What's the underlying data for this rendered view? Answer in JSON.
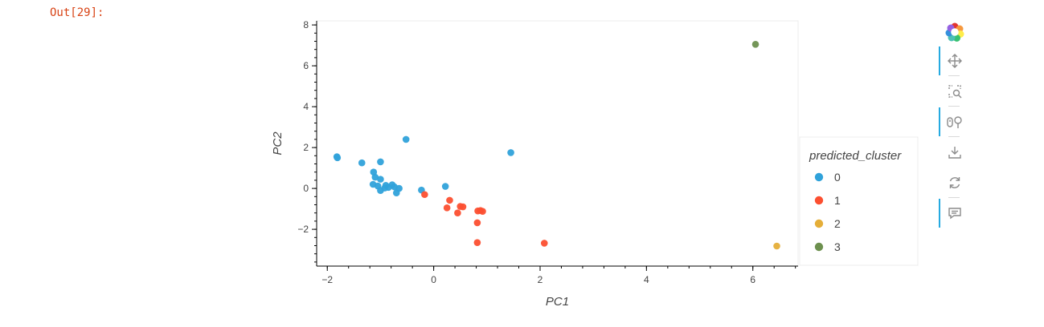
{
  "cell": {
    "out_label": "Out[29]:"
  },
  "chart_data": {
    "type": "scatter",
    "title": "",
    "xlabel": "PC1",
    "ylabel": "PC2",
    "xlim": [
      -2.2,
      6.85
    ],
    "ylim": [
      -3.8,
      8.2
    ],
    "x_ticks": [
      -2,
      0,
      2,
      4,
      6
    ],
    "y_ticks": [
      -2,
      0,
      2,
      4,
      6,
      8
    ],
    "legend": {
      "title": "predicted_cluster",
      "placement": "right"
    },
    "series": [
      {
        "name": "0",
        "color": "#30a2da",
        "points": [
          [
            -1.82,
            1.55
          ],
          [
            -1.81,
            1.5
          ],
          [
            -1.35,
            1.25
          ],
          [
            -1.0,
            1.3
          ],
          [
            -0.52,
            2.4
          ],
          [
            1.45,
            1.75
          ],
          [
            0.22,
            0.1
          ],
          [
            -0.23,
            -0.08
          ],
          [
            -1.13,
            0.8
          ],
          [
            -1.1,
            0.55
          ],
          [
            -1.0,
            0.45
          ],
          [
            -1.14,
            0.2
          ],
          [
            -1.05,
            0.12
          ],
          [
            -0.9,
            0.15
          ],
          [
            -0.85,
            0.05
          ],
          [
            -0.78,
            0.18
          ],
          [
            -0.74,
            0.08
          ],
          [
            -0.65,
            0.0
          ],
          [
            -0.7,
            -0.22
          ],
          [
            -1.0,
            -0.1
          ],
          [
            -0.92,
            0.02
          ]
        ]
      },
      {
        "name": "1",
        "color": "#fc4f30",
        "points": [
          [
            -0.17,
            -0.3
          ],
          [
            0.3,
            -0.58
          ],
          [
            0.25,
            -0.95
          ],
          [
            0.5,
            -0.88
          ],
          [
            0.55,
            -0.9
          ],
          [
            0.45,
            -1.2
          ],
          [
            0.83,
            -1.1
          ],
          [
            0.88,
            -1.08
          ],
          [
            0.92,
            -1.12
          ],
          [
            0.82,
            -1.68
          ],
          [
            0.82,
            -2.65
          ],
          [
            2.08,
            -2.68
          ]
        ]
      },
      {
        "name": "2",
        "color": "#e5ae38",
        "points": [
          [
            6.45,
            -2.82
          ]
        ]
      },
      {
        "name": "3",
        "color": "#6d904f",
        "points": [
          [
            6.05,
            7.05
          ]
        ]
      }
    ]
  },
  "toolbar": {
    "icons": [
      "bokeh-logo-icon",
      "pan-icon",
      "box-zoom-icon",
      "wheel-zoom-icon",
      "save-icon",
      "reset-icon",
      "hover-icon"
    ]
  }
}
